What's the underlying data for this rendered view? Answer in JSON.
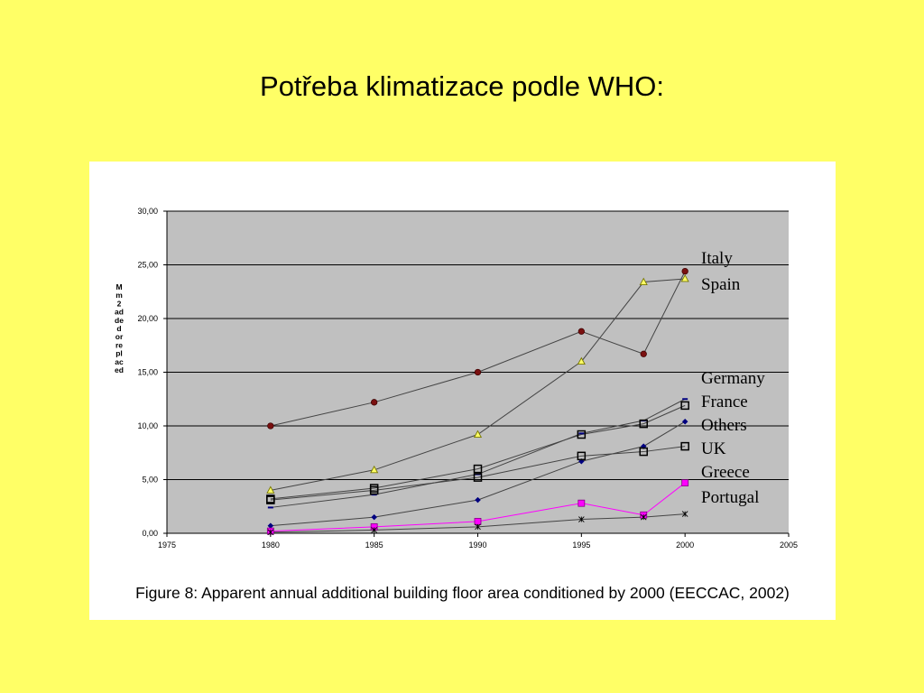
{
  "slide": {
    "title": "Potřeba klimatizace podle WHO:"
  },
  "figure": {
    "caption": "Figure 8: Apparent annual additional building floor area conditioned by 2000 (EECCAC, 2002)"
  },
  "chart_data": {
    "type": "line",
    "title": "",
    "xlabel": "",
    "ylabel": "Mm2 added or replaced",
    "ylabel_lines": [
      "M",
      "m",
      "2",
      "ad",
      "de",
      "d",
      "or",
      "re",
      "pl",
      "ac",
      "ed"
    ],
    "xlim": [
      1975,
      2005
    ],
    "ylim": [
      0,
      30
    ],
    "x_ticks": [
      "1975",
      "1980",
      "1985",
      "1990",
      "1995",
      "2000",
      "2005"
    ],
    "y_ticks": [
      "30,00",
      "25,00",
      "20,00",
      "15,00",
      "10,00",
      "5,00",
      "0,00"
    ],
    "grid": "horizontal",
    "plot_background": "#c0c0c0",
    "legend_position": "right",
    "series": [
      {
        "name": "Italy",
        "color": "#7a1010",
        "marker": "circle",
        "x": [
          1980,
          1985,
          1990,
          1995,
          1998,
          2000
        ],
        "y": [
          10.0,
          12.2,
          15.0,
          18.8,
          16.7,
          24.4
        ]
      },
      {
        "name": "Spain",
        "color": "#b8b800",
        "marker": "triangle",
        "x": [
          1980,
          1985,
          1990,
          1995,
          1998,
          2000
        ],
        "y": [
          4.0,
          5.9,
          9.2,
          16.0,
          23.4,
          23.7
        ]
      },
      {
        "name": "Germany",
        "color": "#000080",
        "marker": "dash",
        "x": [
          1980,
          1985,
          1990,
          1995,
          1998,
          2000
        ],
        "y": [
          2.4,
          3.6,
          5.5,
          9.3,
          10.5,
          12.5
        ]
      },
      {
        "name": "France",
        "color": "#000000",
        "marker": "square",
        "x": [
          1980,
          1985,
          1990,
          1995,
          1998,
          2000
        ],
        "y": [
          3.2,
          4.2,
          6.0,
          9.2,
          10.2,
          11.9
        ]
      },
      {
        "name": "Others",
        "color": "#000080",
        "marker": "diamond",
        "x": [
          1980,
          1985,
          1990,
          1995,
          1998,
          2000
        ],
        "y": [
          0.7,
          1.5,
          3.1,
          6.7,
          8.1,
          10.4
        ]
      },
      {
        "name": "UK",
        "color": "#000000",
        "marker": "square",
        "x": [
          1980,
          1985,
          1990,
          1995,
          1998,
          2000
        ],
        "y": [
          3.1,
          4.0,
          5.2,
          7.2,
          7.6,
          8.1
        ]
      },
      {
        "name": "Greece",
        "color": "#ff00ff",
        "marker": "square",
        "x": [
          1980,
          1985,
          1990,
          1995,
          1998,
          2000
        ],
        "y": [
          0.2,
          0.6,
          1.1,
          2.8,
          1.7,
          4.7
        ]
      },
      {
        "name": "Portugal",
        "color": "#000000",
        "marker": "cross",
        "x": [
          1980,
          1985,
          1990,
          1995,
          1998,
          2000
        ],
        "y": [
          0.1,
          0.3,
          0.6,
          1.3,
          1.5,
          1.8
        ]
      }
    ]
  }
}
